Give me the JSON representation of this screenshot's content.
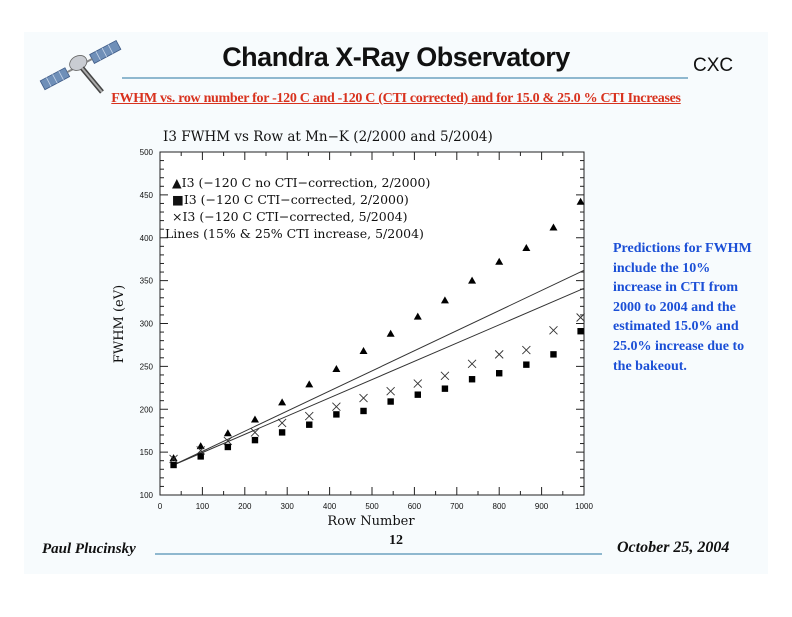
{
  "header": {
    "title": "Chandra X-Ray Observatory",
    "org": "CXC",
    "logo_icon": "satellite-icon",
    "subtitle": "FWHM vs. row number for -120 C and -120 C (CTI corrected) and for 15.0 & 25.0 % CTI Increases",
    "rule_color": "#8fb8cf",
    "subtitle_color": "#d8321e"
  },
  "note": {
    "text": "Predictions for FWHM include the 10% increase in CTI from 2000 to 2004 and the estimated 15.0% and 25.0% increase due to the bakeout.",
    "color": "#1b4fd6"
  },
  "footer": {
    "author": "Paul Plucinsky",
    "page": "12",
    "date": "October 25, 2004"
  },
  "chart_data": {
    "type": "scatter",
    "title": "I3 FWHM vs Row at Mn−K (2/2000 and 5/2004)",
    "xlabel": "Row Number",
    "ylabel": "FWHM (eV)",
    "xlim": [
      0,
      1000
    ],
    "ylim": [
      100,
      500
    ],
    "xticks": [
      0,
      100,
      200,
      300,
      400,
      500,
      600,
      700,
      800,
      900,
      1000
    ],
    "yticks": [
      100,
      150,
      200,
      250,
      300,
      350,
      400,
      450,
      500
    ],
    "grid": false,
    "legend_position": "top-left",
    "legend": [
      {
        "marker": "▲",
        "label": "I3 (−120 C no CTI−correction, 2/2000)"
      },
      {
        "marker": "■",
        "label": "I3 (−120 C CTI−corrected, 2/2000)"
      },
      {
        "marker": "×",
        "label": "I3 (−120 C CTI−corrected, 5/2004)"
      },
      {
        "marker": "",
        "label": "Lines (15% & 25% CTI increase, 5/2004)"
      }
    ],
    "x": [
      32,
      96,
      160,
      224,
      288,
      352,
      416,
      480,
      544,
      608,
      672,
      736,
      800,
      864,
      928,
      992
    ],
    "series": [
      {
        "name": "I3 (-120 C no CTI-correction, 2/2000)",
        "marker": "triangle",
        "values": [
          143,
          157,
          172,
          188,
          208,
          229,
          247,
          268,
          288,
          308,
          327,
          350,
          372,
          388,
          412,
          442
        ]
      },
      {
        "name": "I3 (-120 C CTI-corrected, 2/2000)",
        "marker": "square",
        "values": [
          135,
          145,
          156,
          164,
          173,
          182,
          194,
          198,
          209,
          217,
          224,
          235,
          242,
          252,
          264,
          291
        ]
      },
      {
        "name": "I3 (-120 C CTI-corrected, 5/2004)",
        "marker": "cross",
        "values": [
          142,
          152,
          163,
          173,
          184,
          192,
          203,
          213,
          221,
          230,
          239,
          253,
          264,
          269,
          292,
          307
        ]
      }
    ],
    "lines": [
      {
        "name": "25% CTI increase, 5/2004",
        "x": [
          32,
          1000
        ],
        "y": [
          135,
          362
        ]
      },
      {
        "name": "15% CTI increase, 5/2004",
        "x": [
          32,
          1000
        ],
        "y": [
          135,
          341
        ]
      }
    ]
  }
}
